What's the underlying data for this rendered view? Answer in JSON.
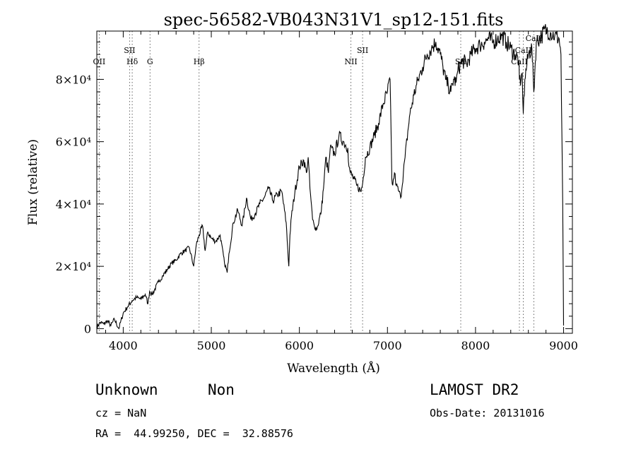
{
  "chart_data": {
    "type": "line",
    "title": "spec-56582-VB043N31V1_sp12-151.fits",
    "xlabel": "Wavelength (Å)",
    "ylabel": "Flux (relative)",
    "xlim": [
      3700,
      9100
    ],
    "ylim": [
      -1500,
      95500
    ],
    "x_ticks": [
      {
        "value": 4000,
        "label": "4000"
      },
      {
        "value": 5000,
        "label": "5000"
      },
      {
        "value": 6000,
        "label": "6000"
      },
      {
        "value": 7000,
        "label": "7000"
      },
      {
        "value": 8000,
        "label": "8000"
      },
      {
        "value": 9000,
        "label": "9000"
      }
    ],
    "y_ticks": [
      {
        "value": 0,
        "label": "0"
      },
      {
        "value": 20000,
        "label": "2×10⁴"
      },
      {
        "value": 40000,
        "label": "4×10⁴"
      },
      {
        "value": 60000,
        "label": "6×10⁴"
      },
      {
        "value": 80000,
        "label": "8×10⁴"
      }
    ],
    "grid": false,
    "spectral_lines": [
      {
        "name": "OII",
        "wavelength": 3727
      },
      {
        "name": "Hδ",
        "wavelength": 4102
      },
      {
        "name": "SII",
        "wavelength": 4072
      },
      {
        "name": "G",
        "wavelength": 4304
      },
      {
        "name": "Hβ",
        "wavelength": 4861
      },
      {
        "name": "NII",
        "wavelength": 6585
      },
      {
        "name": "SII",
        "wavelength": 6718
      },
      {
        "name": "SII",
        "wavelength": 7832
      },
      {
        "name": "CaII",
        "wavelength": 8498
      },
      {
        "name": "CaII",
        "wavelength": 8542
      },
      {
        "name": "CaII",
        "wavelength": 8662
      }
    ],
    "series": [
      {
        "x": [
          3700,
          3740,
          3780,
          3820,
          3860,
          3900,
          3950,
          4000,
          4050,
          4100,
          4150,
          4200,
          4250,
          4280,
          4300,
          4330,
          4400,
          4450,
          4500,
          4550,
          4600,
          4650,
          4700,
          4750,
          4800,
          4830,
          4861,
          4900,
          4930,
          4960,
          5000,
          5050,
          5100,
          5150,
          5180,
          5200,
          5250,
          5300,
          5350,
          5400,
          5450,
          5500,
          5550,
          5600,
          5650,
          5700,
          5750,
          5800,
          5850,
          5880,
          5893,
          5910,
          5950,
          6000,
          6050,
          6080,
          6100,
          6120,
          6150,
          6170,
          6200,
          6250,
          6280,
          6300,
          6330,
          6350,
          6400,
          6450,
          6500,
          6550,
          6563,
          6580,
          6620,
          6650,
          6700,
          6720,
          6750,
          6800,
          6850,
          6900,
          6950,
          7000,
          7030,
          7050,
          7060,
          7080,
          7100,
          7130,
          7150,
          7200,
          7250,
          7300,
          7350,
          7400,
          7450,
          7500,
          7550,
          7600,
          7630,
          7660,
          7690,
          7720,
          7750,
          7780,
          7800,
          7850,
          7900,
          7950,
          8000,
          8050,
          8100,
          8150,
          8200,
          8250,
          8300,
          8350,
          8400,
          8450,
          8490,
          8498,
          8510,
          8530,
          8542,
          8560,
          8600,
          8640,
          8662,
          8690,
          8750,
          8800,
          8850,
          8900,
          8950,
          8970,
          8990,
          9000
        ],
        "values": [
          500,
          2000,
          1500,
          2500,
          1000,
          3000,
          0,
          5000,
          7000,
          9000,
          10000,
          9500,
          11000,
          8000,
          12000,
          11000,
          15000,
          17000,
          19000,
          21000,
          22000,
          24000,
          25000,
          26000,
          20000,
          27000,
          30000,
          33000,
          25000,
          31000,
          29000,
          28000,
          30000,
          21000,
          18000,
          24000,
          34000,
          38000,
          33000,
          42000,
          35000,
          37000,
          40000,
          42000,
          45000,
          41000,
          43000,
          44000,
          34000,
          20000,
          30000,
          36000,
          44000,
          52000,
          54000,
          50000,
          55000,
          45000,
          35000,
          33000,
          32000,
          38000,
          47000,
          55000,
          50000,
          58000,
          56000,
          62000,
          60000,
          58000,
          52000,
          50000,
          48000,
          46000,
          44000,
          47000,
          55000,
          58000,
          62000,
          66000,
          72000,
          76000,
          80000,
          48000,
          46000,
          50000,
          46000,
          44000,
          42000,
          55000,
          68000,
          75000,
          80000,
          84000,
          88000,
          90000,
          92000,
          88000,
          84000,
          80000,
          78000,
          76000,
          80000,
          79000,
          83000,
          86000,
          85000,
          88000,
          90000,
          91000,
          92000,
          93000,
          92000,
          93000,
          94000,
          92000,
          90000,
          88000,
          86000,
          80000,
          78000,
          82000,
          69000,
          80000,
          88000,
          90000,
          76000,
          92000,
          94000,
          96000,
          95000,
          94000,
          93000,
          88000,
          40000,
          1000
        ]
      }
    ]
  },
  "footer": {
    "class_label": "Unknown",
    "subclass_label": "Non",
    "survey_label": "LAMOST DR2",
    "cz_text": "cz = NaN",
    "obs_date_text": "Obs-Date: 20131016",
    "coords_text": "RA =  44.99250, DEC =  32.88576"
  }
}
